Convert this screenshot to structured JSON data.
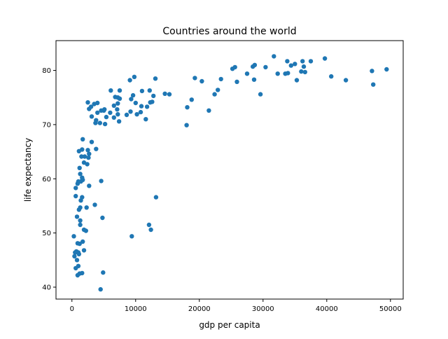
{
  "chart_data": {
    "type": "scatter",
    "title": "Countries around the world",
    "xlabel": "gdp per capita",
    "ylabel": "life expectancy",
    "xlim": [
      -2500,
      52000
    ],
    "ylim": [
      37.8,
      85.5
    ],
    "xticks": [
      0,
      10000,
      20000,
      30000,
      40000,
      50000
    ],
    "xtick_labels": [
      "0",
      "10000",
      "20000",
      "30000",
      "40000",
      "50000"
    ],
    "yticks": [
      40,
      50,
      60,
      70,
      80
    ],
    "ytick_labels": [
      "40",
      "50",
      "60",
      "70",
      "80"
    ],
    "grid": false,
    "legend": "none",
    "marker_color": "#1f77b4",
    "points": [
      [
        4500,
        39.6
      ],
      [
        4900,
        42.7
      ],
      [
        600,
        43.5
      ],
      [
        1000,
        43.9
      ],
      [
        1200,
        42.5
      ],
      [
        900,
        42.2
      ],
      [
        1600,
        42.6
      ],
      [
        500,
        46.4
      ],
      [
        800,
        45.0
      ],
      [
        1100,
        46.1
      ],
      [
        400,
        45.7
      ],
      [
        700,
        46.6
      ],
      [
        1000,
        46.4
      ],
      [
        1900,
        46.8
      ],
      [
        300,
        49.4
      ],
      [
        900,
        48.1
      ],
      [
        1200,
        48.0
      ],
      [
        1700,
        48.4
      ],
      [
        1300,
        51.5
      ],
      [
        1300,
        52.3
      ],
      [
        800,
        53.0
      ],
      [
        1900,
        50.6
      ],
      [
        2200,
        50.4
      ],
      [
        4800,
        52.8
      ],
      [
        9400,
        49.4
      ],
      [
        12100,
        51.5
      ],
      [
        12400,
        50.6
      ],
      [
        13200,
        56.6
      ],
      [
        3600,
        55.2
      ],
      [
        2300,
        54.7
      ],
      [
        1100,
        54.3
      ],
      [
        1300,
        54.7
      ],
      [
        1400,
        56.0
      ],
      [
        1600,
        56.6
      ],
      [
        600,
        56.8
      ],
      [
        600,
        58.3
      ],
      [
        900,
        59.1
      ],
      [
        1000,
        59.5
      ],
      [
        1400,
        59.5
      ],
      [
        1700,
        59.8
      ],
      [
        2700,
        58.7
      ],
      [
        4600,
        59.6
      ],
      [
        1300,
        60.9
      ],
      [
        1600,
        60.2
      ],
      [
        1200,
        62.0
      ],
      [
        2400,
        62.7
      ],
      [
        1900,
        63.0
      ],
      [
        2600,
        63.9
      ],
      [
        1500,
        64.1
      ],
      [
        2000,
        64.1
      ],
      [
        2700,
        64.6
      ],
      [
        1100,
        65.1
      ],
      [
        1600,
        65.4
      ],
      [
        2500,
        65.3
      ],
      [
        3800,
        65.5
      ],
      [
        3100,
        66.8
      ],
      [
        1700,
        67.3
      ],
      [
        4400,
        70.3
      ],
      [
        5200,
        70.1
      ],
      [
        3700,
        70.3
      ],
      [
        3800,
        70.8
      ],
      [
        3100,
        71.5
      ],
      [
        4000,
        72.2
      ],
      [
        4600,
        72.6
      ],
      [
        5000,
        72.6
      ],
      [
        5400,
        71.4
      ],
      [
        6000,
        72.2
      ],
      [
        6600,
        71.3
      ],
      [
        7200,
        71.9
      ],
      [
        7400,
        70.6
      ],
      [
        8600,
        71.8
      ],
      [
        9200,
        72.4
      ],
      [
        10200,
        71.9
      ],
      [
        10800,
        72.3
      ],
      [
        11600,
        71.0
      ],
      [
        2500,
        74.1
      ],
      [
        2700,
        72.9
      ],
      [
        3000,
        73.3
      ],
      [
        3500,
        73.8
      ],
      [
        4000,
        74.0
      ],
      [
        5100,
        72.8
      ],
      [
        6600,
        73.5
      ],
      [
        7100,
        72.8
      ],
      [
        7500,
        74.8
      ],
      [
        7200,
        75.0
      ],
      [
        6800,
        75.1
      ],
      [
        7200,
        73.9
      ],
      [
        9300,
        74.7
      ],
      [
        10000,
        74.0
      ],
      [
        10900,
        73.4
      ],
      [
        11800,
        73.3
      ],
      [
        12300,
        74.1
      ],
      [
        12600,
        74.2
      ],
      [
        9600,
        75.4
      ],
      [
        11000,
        76.2
      ],
      [
        12800,
        75.3
      ],
      [
        14600,
        75.7
      ],
      [
        15300,
        75.6
      ],
      [
        6100,
        76.3
      ],
      [
        7500,
        76.3
      ],
      [
        12200,
        76.3
      ],
      [
        9100,
        78.2
      ],
      [
        9800,
        78.8
      ],
      [
        13100,
        78.5
      ],
      [
        18100,
        73.2
      ],
      [
        18000,
        69.9
      ],
      [
        18800,
        74.6
      ],
      [
        19300,
        78.6
      ],
      [
        20400,
        78.0
      ],
      [
        21500,
        72.6
      ],
      [
        22400,
        75.6
      ],
      [
        22900,
        76.4
      ],
      [
        23400,
        78.4
      ],
      [
        25200,
        80.3
      ],
      [
        25600,
        80.6
      ],
      [
        25900,
        77.9
      ],
      [
        27500,
        79.4
      ],
      [
        28400,
        80.7
      ],
      [
        28700,
        81.0
      ],
      [
        28600,
        78.3
      ],
      [
        29600,
        75.6
      ],
      [
        30400,
        80.6
      ],
      [
        31700,
        82.6
      ],
      [
        32300,
        79.4
      ],
      [
        33500,
        79.4
      ],
      [
        33900,
        79.5
      ],
      [
        33800,
        81.7
      ],
      [
        34400,
        80.9
      ],
      [
        35000,
        81.2
      ],
      [
        35300,
        78.2
      ],
      [
        36000,
        79.8
      ],
      [
        36200,
        81.7
      ],
      [
        36400,
        80.7
      ],
      [
        36600,
        79.7
      ],
      [
        37500,
        81.7
      ],
      [
        39700,
        82.2
      ],
      [
        40700,
        78.9
      ],
      [
        43000,
        78.2
      ],
      [
        47100,
        79.9
      ],
      [
        47300,
        77.4
      ],
      [
        49400,
        80.2
      ]
    ]
  }
}
